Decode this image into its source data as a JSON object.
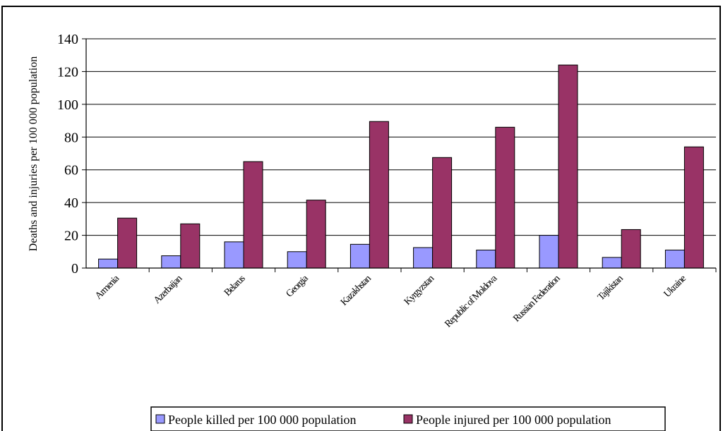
{
  "chart_data": {
    "type": "bar",
    "title": "",
    "xlabel": "",
    "ylabel": "Deaths and injuries per 100 000 population",
    "ylim": [
      0,
      140
    ],
    "yticks": [
      0,
      20,
      40,
      60,
      80,
      100,
      120,
      140
    ],
    "grid": true,
    "legend_position": "bottom",
    "categories": [
      "Armenia",
      "Azerbaijan",
      "Belarus",
      "Georgia",
      "Kazakhstan",
      "Kyrgyzstan",
      "Republic of Moldova",
      "Russian Federation",
      "Tajikistan",
      "Ukraine"
    ],
    "series": [
      {
        "name": "People killed per 100 000 population",
        "color": "#9999ff",
        "values": [
          5.5,
          7.5,
          16,
          10,
          14.5,
          12.5,
          11,
          20,
          6.5,
          11
        ]
      },
      {
        "name": "People injured per 100 000 population",
        "color": "#993366",
        "values": [
          30.5,
          27,
          65,
          41.5,
          89.5,
          67.5,
          86,
          124,
          23.5,
          74
        ]
      }
    ]
  }
}
